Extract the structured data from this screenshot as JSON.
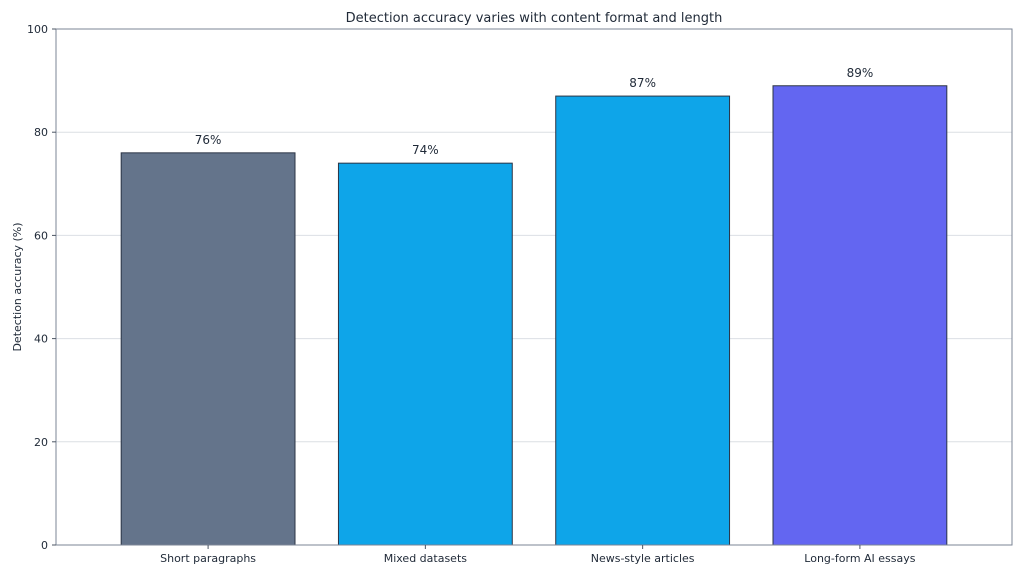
{
  "chart_data": {
    "type": "bar",
    "title": "Detection accuracy varies with content format and length",
    "xlabel": "",
    "ylabel": "Detection accuracy (%)",
    "ylim": [
      0,
      100
    ],
    "yticks": [
      0,
      20,
      40,
      60,
      80,
      100
    ],
    "grid": true,
    "categories": [
      "Short paragraphs",
      "Mixed datasets",
      "News-style articles",
      "Long-form AI essays"
    ],
    "values": [
      76,
      74,
      87,
      89
    ],
    "data_labels": [
      "76%",
      "74%",
      "87%",
      "89%"
    ],
    "colors": [
      "#64748b",
      "#0ea5e9",
      "#0ea5e9",
      "#6366f1"
    ]
  }
}
